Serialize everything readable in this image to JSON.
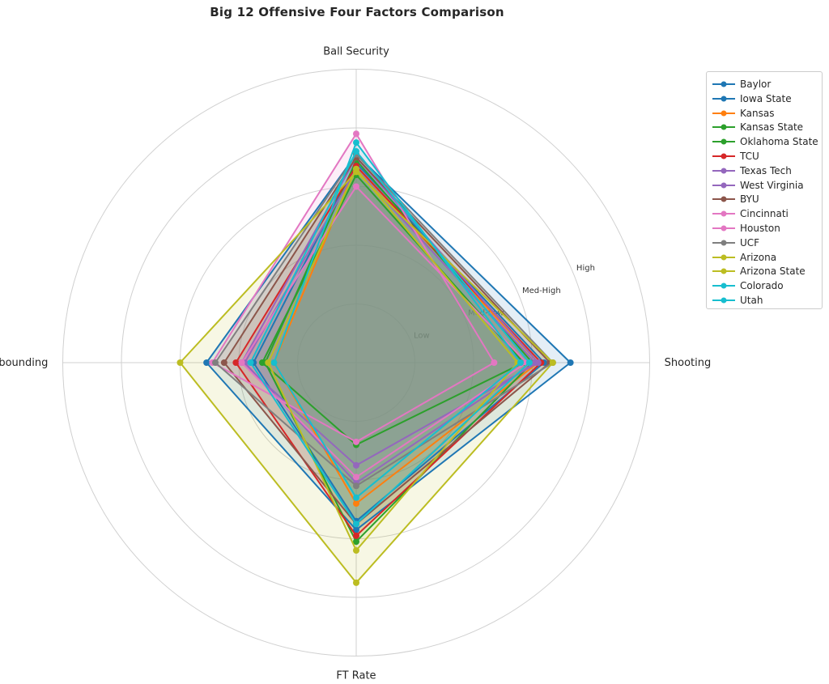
{
  "chart_data": {
    "type": "radar",
    "title": "Big 12 Offensive Four Factors Comparison",
    "axes": [
      "Shooting",
      "Ball Security",
      "Off Rebounding",
      "FT Rate"
    ],
    "radial_labels": [
      "Low",
      "Med-Low",
      "Med-High",
      "High"
    ],
    "rlim": [
      0,
      5
    ],
    "grid": true,
    "legend_position": "outside-top-right",
    "series": [
      {
        "name": "Baylor",
        "color": "#1f77b4",
        "values": [
          3.65,
          3.55,
          2.55,
          2.85
        ]
      },
      {
        "name": "Iowa State",
        "color": "#1f77b4",
        "values": [
          3.2,
          3.4,
          1.75,
          2.7
        ]
      },
      {
        "name": "Kansas",
        "color": "#ff7f0e",
        "values": [
          3.1,
          3.35,
          1.4,
          2.4
        ]
      },
      {
        "name": "Kansas State",
        "color": "#2ca02c",
        "values": [
          2.85,
          3.2,
          1.6,
          1.4
        ]
      },
      {
        "name": "Oklahoma State",
        "color": "#2ca02c",
        "values": [
          3.0,
          3.45,
          1.55,
          3.05
        ]
      },
      {
        "name": "TCU",
        "color": "#d62728",
        "values": [
          3.15,
          3.35,
          2.05,
          2.95
        ]
      },
      {
        "name": "Texas Tech",
        "color": "#9467bd",
        "values": [
          3.1,
          3.5,
          1.95,
          1.75
        ]
      },
      {
        "name": "West Virginia",
        "color": "#9467bd",
        "values": [
          3.05,
          3.3,
          1.9,
          2.05
        ]
      },
      {
        "name": "BYU",
        "color": "#8c564b",
        "values": [
          3.3,
          3.5,
          2.25,
          2.75
        ]
      },
      {
        "name": "Cincinnati",
        "color": "#e377c2",
        "values": [
          2.35,
          3.9,
          2.45,
          1.35
        ]
      },
      {
        "name": "Houston",
        "color": "#e377c2",
        "values": [
          2.9,
          3.0,
          1.95,
          1.95
        ]
      },
      {
        "name": "UCF",
        "color": "#7f7f7f",
        "values": [
          3.35,
          3.55,
          2.4,
          2.1
        ]
      },
      {
        "name": "Arizona",
        "color": "#bcbd22",
        "values": [
          3.35,
          3.25,
          3.0,
          3.75
        ]
      },
      {
        "name": "Arizona State",
        "color": "#bcbd22",
        "values": [
          2.75,
          3.3,
          1.5,
          3.2
        ]
      },
      {
        "name": "Colorado",
        "color": "#17becf",
        "values": [
          2.95,
          3.6,
          1.8,
          2.75
        ]
      },
      {
        "name": "Utah",
        "color": "#17becf",
        "values": [
          2.8,
          3.75,
          1.4,
          2.3
        ]
      }
    ]
  }
}
